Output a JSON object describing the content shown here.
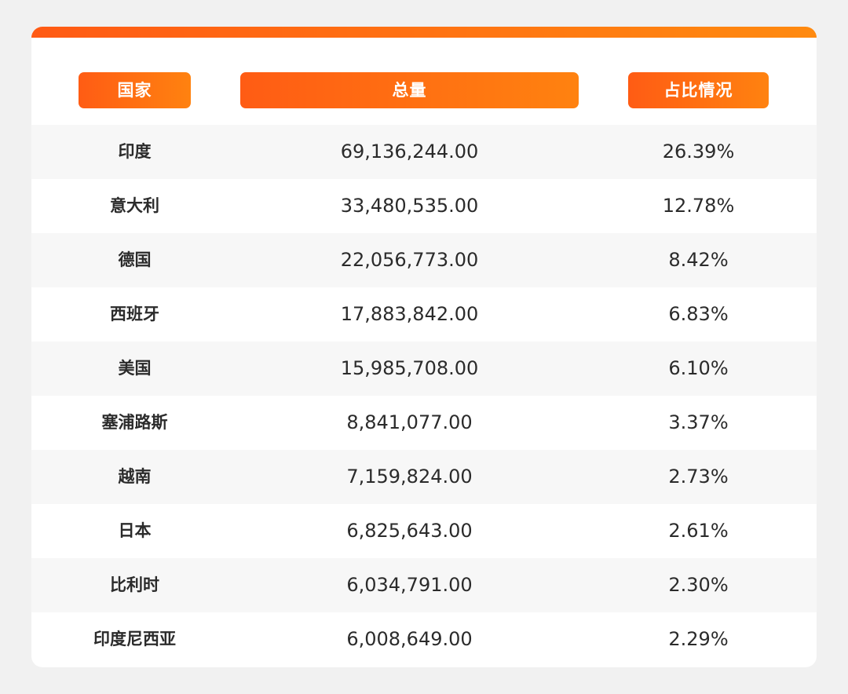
{
  "table": {
    "headers": {
      "country": "国家",
      "total": "总量",
      "share": "占比情况"
    },
    "rows": [
      {
        "country": "印度",
        "total": "69,136,244.00",
        "share": "26.39%"
      },
      {
        "country": "意大利",
        "total": "33,480,535.00",
        "share": "12.78%"
      },
      {
        "country": "德国",
        "total": "22,056,773.00",
        "share": "8.42%"
      },
      {
        "country": "西班牙",
        "total": "17,883,842.00",
        "share": "6.83%"
      },
      {
        "country": "美国",
        "total": "15,985,708.00",
        "share": "6.10%"
      },
      {
        "country": "塞浦路斯",
        "total": "8,841,077.00",
        "share": "3.37%"
      },
      {
        "country": "越南",
        "total": "7,159,824.00",
        "share": "2.73%"
      },
      {
        "country": "日本",
        "total": "6,825,643.00",
        "share": "2.61%"
      },
      {
        "country": "比利时",
        "total": "6,034,791.00",
        "share": "2.30%"
      },
      {
        "country": "印度尼西亚",
        "total": "6,008,649.00",
        "share": "2.29%"
      }
    ]
  },
  "colors": {
    "accent_start": "#ff5a14",
    "accent_end": "#ff8a10",
    "page_background": "#f1f1f1",
    "card_background": "#ffffff",
    "alt_row_background": "#f7f7f7",
    "text": "#2b2b2b",
    "header_text": "#ffffff"
  }
}
